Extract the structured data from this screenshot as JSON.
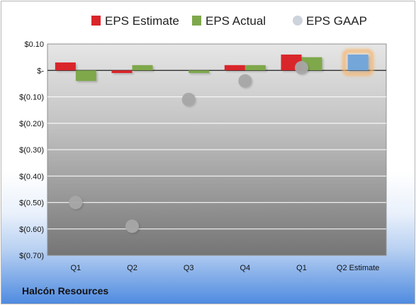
{
  "company_label": "Halcón Resources",
  "colors": {
    "estimate": "#d9262b",
    "actual": "#7fa84b",
    "gaap": "#a8a8a8",
    "future_estimate": "#74a6d9",
    "highlight": "#f5b66e"
  },
  "chart_data": {
    "type": "bar",
    "categories": [
      "Q1",
      "Q2",
      "Q3",
      "Q4",
      "Q1",
      "Q2 Estimate"
    ],
    "series": [
      {
        "name": "EPS Estimate",
        "values": [
          0.03,
          -0.01,
          null,
          0.02,
          0.06,
          0.06
        ]
      },
      {
        "name": "EPS Actual",
        "values": [
          -0.04,
          0.02,
          -0.01,
          0.02,
          0.05,
          null
        ]
      },
      {
        "name": "EPS GAAP",
        "type": "scatter",
        "values": [
          -0.5,
          -0.59,
          -0.11,
          -0.04,
          0.01,
          null
        ]
      }
    ],
    "yticks": [
      "$0.10",
      "$-",
      "$(0.10)",
      "$(0.20)",
      "$(0.30)",
      "$(0.40)",
      "$(0.50)",
      "$(0.60)",
      "$(0.70)"
    ],
    "ylim": [
      -0.7,
      0.1
    ],
    "grid": true,
    "legend": "top"
  }
}
